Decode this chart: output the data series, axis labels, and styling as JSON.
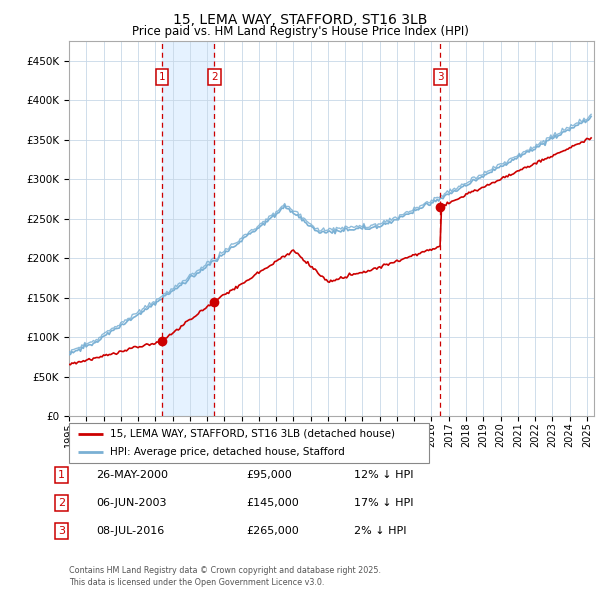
{
  "title": "15, LEMA WAY, STAFFORD, ST16 3LB",
  "subtitle": "Price paid vs. HM Land Registry's House Price Index (HPI)",
  "legend_line1": "15, LEMA WAY, STAFFORD, ST16 3LB (detached house)",
  "legend_line2": "HPI: Average price, detached house, Stafford",
  "sale1_date": "26-MAY-2000",
  "sale1_price": 95000,
  "sale1_label": "12% ↓ HPI",
  "sale2_date": "06-JUN-2003",
  "sale2_price": 145000,
  "sale2_label": "17% ↓ HPI",
  "sale3_date": "08-JUL-2016",
  "sale3_price": 265000,
  "sale3_label": "2% ↓ HPI",
  "footer": "Contains HM Land Registry data © Crown copyright and database right 2025.\nThis data is licensed under the Open Government Licence v3.0.",
  "red_color": "#cc0000",
  "blue_color": "#7ab0d4",
  "bg_shade_color": "#ddeeff",
  "grid_color": "#c8d8e8",
  "ylim_max": 475000,
  "ylabel_ticks": [
    0,
    50000,
    100000,
    150000,
    200000,
    250000,
    300000,
    350000,
    400000,
    450000
  ]
}
